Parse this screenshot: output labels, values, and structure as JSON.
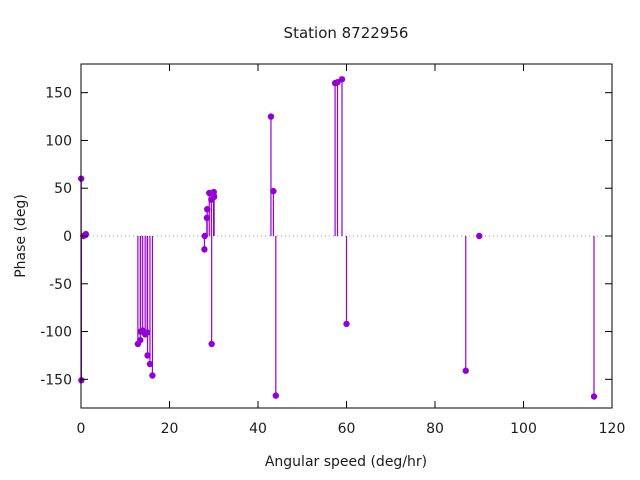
{
  "window": {
    "title": "Station 8722956"
  },
  "chart_data": {
    "type": "stem",
    "title": "Station 8722956",
    "xlabel": "Angular speed (deg/hr)",
    "ylabel": "Phase (deg)",
    "xlim": [
      0,
      120
    ],
    "ylim": [
      -180,
      180
    ],
    "xticks": [
      0,
      20,
      40,
      60,
      80,
      100,
      120
    ],
    "yticks": [
      -150,
      -100,
      -50,
      0,
      50,
      100,
      150
    ],
    "legend": "none",
    "grid": "zero-axis-dotted-only",
    "marker": "filled-circle",
    "color": "#9400d3",
    "zero_line_color": "#9a9a9a",
    "border_color": "#000000",
    "background": "#ffffff",
    "points": [
      {
        "x": 0.041,
        "y": 60
      },
      {
        "x": 0.082,
        "y": -151
      },
      {
        "x": 0.544,
        "y": 0
      },
      {
        "x": 1.016,
        "y": 1
      },
      {
        "x": 1.098,
        "y": 2
      },
      {
        "x": 12.854,
        "y": -113
      },
      {
        "x": 13.399,
        "y": -109
      },
      {
        "x": 13.472,
        "y": -100
      },
      {
        "x": 13.943,
        "y": -99
      },
      {
        "x": 14.497,
        "y": -103
      },
      {
        "x": 14.959,
        "y": -101
      },
      {
        "x": 15.041,
        "y": -125
      },
      {
        "x": 15.585,
        "y": -134
      },
      {
        "x": 16.139,
        "y": -146
      },
      {
        "x": 27.895,
        "y": -14
      },
      {
        "x": 27.968,
        "y": 0
      },
      {
        "x": 28.44,
        "y": 19
      },
      {
        "x": 28.513,
        "y": 28
      },
      {
        "x": 28.984,
        "y": 45
      },
      {
        "x": 29.456,
        "y": 38
      },
      {
        "x": 29.528,
        "y": -113
      },
      {
        "x": 29.959,
        "y": 43
      },
      {
        "x": 30.0,
        "y": 46
      },
      {
        "x": 30.082,
        "y": 41
      },
      {
        "x": 42.927,
        "y": 125
      },
      {
        "x": 43.476,
        "y": 47
      },
      {
        "x": 44.025,
        "y": -167
      },
      {
        "x": 57.424,
        "y": 160
      },
      {
        "x": 57.968,
        "y": 161
      },
      {
        "x": 58.984,
        "y": 164
      },
      {
        "x": 60.0,
        "y": -92
      },
      {
        "x": 86.952,
        "y": -141
      },
      {
        "x": 90.0,
        "y": 0
      },
      {
        "x": 115.936,
        "y": -168
      }
    ]
  }
}
